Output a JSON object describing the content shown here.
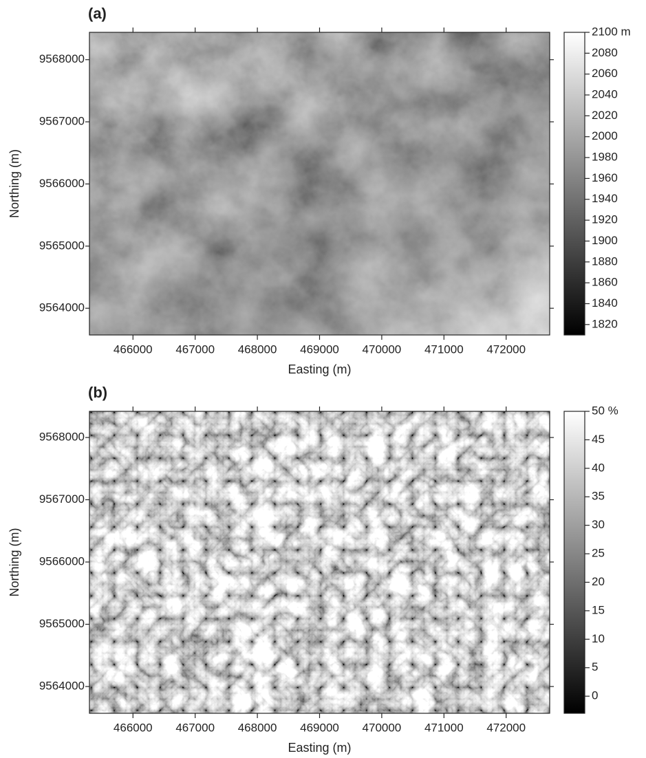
{
  "chart_data": [
    {
      "type": "heatmap",
      "panel_label": "(a)",
      "x_label": "Easting (m)",
      "y_label": "Northing (m)",
      "xlim": [
        465300,
        472700
      ],
      "xticks": [
        466000,
        467000,
        468000,
        469000,
        470000,
        471000,
        472000
      ],
      "ylim": [
        9563570,
        9568440
      ],
      "yticks": [
        9564000,
        9565000,
        9566000,
        9567000,
        9568000
      ],
      "colormap": [
        "#000000",
        "#ffffff"
      ],
      "clim": [
        1810,
        2100
      ],
      "cticks": [
        1820,
        1840,
        1860,
        1880,
        1900,
        1920,
        1940,
        1960,
        1980,
        2000,
        2020,
        2040,
        2060,
        2080,
        {
          "value": 2100,
          "label": "2100 m"
        }
      ]
    },
    {
      "type": "heatmap",
      "panel_label": "(b)",
      "x_label": "Easting (m)",
      "y_label": "Northing (m)",
      "xlim": [
        465300,
        472700
      ],
      "xticks": [
        466000,
        467000,
        468000,
        469000,
        470000,
        471000,
        472000
      ],
      "ylim": [
        9563570,
        9568420
      ],
      "yticks": [
        9564000,
        9565000,
        9566000,
        9567000,
        9568000
      ],
      "colormap": [
        "#000000",
        "#ffffff"
      ],
      "clim": [
        -3,
        50
      ],
      "cticks": [
        0,
        5,
        10,
        15,
        20,
        25,
        30,
        35,
        40,
        45,
        {
          "value": 50,
          "label": "50 %"
        }
      ]
    }
  ]
}
